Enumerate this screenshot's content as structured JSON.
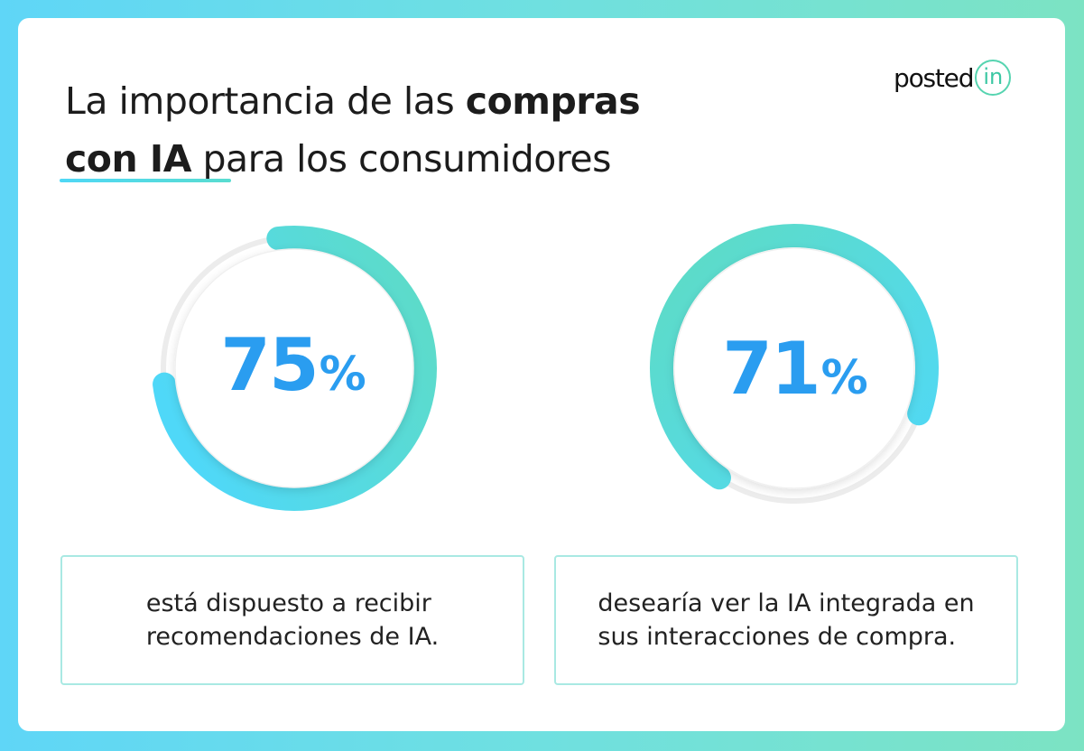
{
  "header": {
    "title_line1_regular": "La importancia de las ",
    "title_line1_bold": "compras",
    "title_line2_bold": "con IA",
    "title_line2_regular": " para los consumidores"
  },
  "logo": {
    "text": "posted",
    "badge": "in",
    "accent_color": "#56d4b0"
  },
  "chart_data": [
    {
      "type": "pie",
      "style": "donut-progress",
      "value": 75,
      "max": 100,
      "display": {
        "number": "75",
        "unit": "%"
      },
      "description": [
        "está dispuesto a recibir",
        "recomendaciones de IA."
      ],
      "colors": {
        "start": "#4fd8f8",
        "end": "#5fdcc0",
        "track": "#ececec",
        "text": "#2a9df0"
      }
    },
    {
      "type": "pie",
      "style": "donut-progress",
      "value": 71,
      "max": 100,
      "display": {
        "number": "71",
        "unit": "%"
      },
      "description": [
        "desearía ver la IA integrada en",
        "sus interacciones de compra."
      ],
      "colors": {
        "start": "#5fdcc0",
        "end": "#4fd8f8",
        "track": "#ececec",
        "text": "#2a9df0"
      }
    }
  ]
}
